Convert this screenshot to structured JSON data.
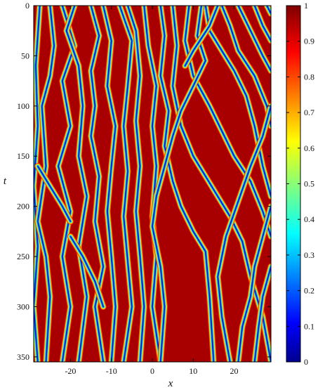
{
  "chart_data": {
    "type": "heatmap",
    "title": "",
    "xlabel": "x",
    "ylabel": "t",
    "xlim": [
      -29,
      29
    ],
    "ylim": [
      0,
      355
    ],
    "y_inverted": true,
    "x_ticks": [
      -20,
      -10,
      0,
      10,
      20
    ],
    "x_tick_labels": [
      "-20",
      "-10",
      "0",
      "10",
      "20"
    ],
    "y_ticks": [
      0,
      50,
      100,
      150,
      200,
      250,
      300,
      350
    ],
    "y_tick_labels": [
      "0",
      "50",
      "100",
      "150",
      "200",
      "250",
      "300",
      "350"
    ],
    "colorbar": {
      "range": [
        0,
        1
      ],
      "ticks": [
        0,
        0.1,
        0.2,
        0.3,
        0.4,
        0.5,
        0.6,
        0.7,
        0.8,
        0.9,
        1
      ],
      "tick_labels": [
        "0",
        "0.1",
        "0.2",
        "0.3",
        "0.4",
        "0.5",
        "0.6",
        "0.7",
        "0.8",
        "0.9",
        "1"
      ],
      "colormap": "jet"
    },
    "background_value": 1,
    "valley_value": 0,
    "valleys": [
      [
        [
          -27.5,
          0
        ],
        [
          -28.5,
          60
        ],
        [
          -28,
          120
        ],
        [
          -29,
          180
        ],
        [
          -28,
          240
        ],
        [
          -29,
          300
        ],
        [
          -28,
          355
        ]
      ],
      [
        [
          -25,
          0
        ],
        [
          -24,
          40
        ],
        [
          -25,
          70
        ],
        [
          -27,
          100
        ],
        [
          -26,
          160
        ],
        [
          -28,
          215
        ],
        [
          -26,
          250
        ],
        [
          -25,
          290
        ],
        [
          -26,
          355
        ]
      ],
      [
        [
          -22,
          0
        ],
        [
          -19,
          40
        ],
        [
          -22,
          75
        ],
        [
          -20,
          120
        ],
        [
          -23,
          160
        ],
        [
          -20,
          205
        ],
        [
          -22,
          250
        ],
        [
          -20,
          300
        ],
        [
          -22,
          355
        ]
      ],
      [
        [
          -19,
          0
        ],
        [
          -21,
          25
        ],
        [
          -18,
          60
        ],
        [
          -17,
          100
        ],
        [
          -18,
          150
        ],
        [
          -16,
          190
        ],
        [
          -18,
          240
        ],
        [
          -16,
          290
        ],
        [
          -18,
          355
        ]
      ],
      [
        [
          -15,
          0
        ],
        [
          -13,
          30
        ],
        [
          -15,
          65
        ],
        [
          -14,
          100
        ],
        [
          -15,
          130
        ],
        [
          -13,
          170
        ],
        [
          -14,
          215
        ],
        [
          -12,
          260
        ],
        [
          -14,
          300
        ],
        [
          -12,
          355
        ]
      ],
      [
        [
          -12,
          0
        ],
        [
          -10,
          35
        ],
        [
          -11,
          80
        ],
        [
          -9,
          120
        ],
        [
          -10,
          160
        ],
        [
          -11,
          205
        ],
        [
          -10,
          250
        ],
        [
          -9,
          300
        ],
        [
          -10,
          355
        ]
      ],
      [
        [
          -8,
          0
        ],
        [
          -5,
          35
        ],
        [
          -6,
          80
        ],
        [
          -7,
          120
        ],
        [
          -6,
          165
        ],
        [
          -7,
          210
        ],
        [
          -6,
          255
        ],
        [
          -5,
          300
        ],
        [
          -7,
          355
        ]
      ],
      [
        [
          -6,
          0
        ],
        [
          -4,
          25
        ],
        [
          -3,
          70
        ],
        [
          -4,
          115
        ],
        [
          -3,
          160
        ],
        [
          -4,
          205
        ],
        [
          -3,
          250
        ],
        [
          -2,
          300
        ],
        [
          -3,
          355
        ]
      ],
      [
        [
          -2,
          0
        ],
        [
          -1,
          40
        ],
        [
          1,
          80
        ],
        [
          0,
          120
        ],
        [
          1,
          160
        ],
        [
          0,
          210
        ],
        [
          1,
          250
        ],
        [
          0,
          300
        ],
        [
          2,
          355
        ]
      ],
      [
        [
          2,
          0
        ],
        [
          3,
          30
        ],
        [
          2,
          70
        ],
        [
          4,
          105
        ],
        [
          3,
          140
        ],
        [
          5,
          175
        ],
        [
          7,
          200
        ],
        [
          10,
          225
        ],
        [
          13,
          245
        ],
        [
          14,
          290
        ],
        [
          15,
          355
        ]
      ],
      [
        [
          5,
          0
        ],
        [
          6,
          40
        ],
        [
          5,
          80
        ],
        [
          7,
          120
        ],
        [
          10,
          150
        ],
        [
          13,
          170
        ],
        [
          16,
          190
        ],
        [
          19,
          210
        ],
        [
          22,
          235
        ],
        [
          24,
          270
        ],
        [
          27,
          310
        ],
        [
          29,
          355
        ]
      ],
      [
        [
          9,
          0
        ],
        [
          8,
          35
        ],
        [
          10,
          70
        ],
        [
          14,
          100
        ],
        [
          17,
          125
        ],
        [
          20,
          150
        ],
        [
          24,
          175
        ],
        [
          27,
          205
        ],
        [
          29,
          230
        ]
      ],
      [
        [
          13,
          0
        ],
        [
          14,
          25
        ],
        [
          17,
          45
        ],
        [
          20,
          65
        ],
        [
          23,
          90
        ],
        [
          25,
          120
        ],
        [
          27,
          160
        ],
        [
          29,
          190
        ]
      ],
      [
        [
          17,
          0
        ],
        [
          19,
          20
        ],
        [
          21,
          45
        ],
        [
          25,
          70
        ],
        [
          28,
          100
        ],
        [
          29,
          120
        ]
      ],
      [
        [
          21,
          0
        ],
        [
          24,
          25
        ],
        [
          27,
          50
        ],
        [
          29,
          65
        ]
      ],
      [
        [
          25,
          0
        ],
        [
          27,
          20
        ],
        [
          29,
          35
        ]
      ],
      [
        [
          28,
          0
        ],
        [
          29,
          8
        ]
      ],
      [
        [
          12,
          0
        ],
        [
          11,
          30
        ],
        [
          13,
          55
        ],
        [
          10,
          80
        ],
        [
          7,
          105
        ],
        [
          5,
          130
        ],
        [
          3,
          160
        ],
        [
          1,
          190
        ],
        [
          0,
          220
        ],
        [
          2,
          260
        ],
        [
          3,
          300
        ],
        [
          2,
          355
        ]
      ],
      [
        [
          16,
          0
        ],
        [
          14,
          20
        ],
        [
          10,
          45
        ],
        [
          8,
          60
        ]
      ],
      [
        [
          29,
          100
        ],
        [
          27,
          130
        ],
        [
          24,
          160
        ],
        [
          21,
          195
        ],
        [
          18,
          230
        ],
        [
          16,
          270
        ],
        [
          17,
          310
        ],
        [
          19,
          355
        ]
      ],
      [
        [
          29,
          200
        ],
        [
          27,
          230
        ],
        [
          25,
          260
        ],
        [
          24,
          290
        ],
        [
          22,
          320
        ],
        [
          21,
          355
        ]
      ],
      [
        [
          29,
          260
        ],
        [
          27,
          290
        ],
        [
          26,
          320
        ],
        [
          25,
          355
        ]
      ],
      [
        [
          -20,
          230
        ],
        [
          -17,
          250
        ],
        [
          -14,
          275
        ],
        [
          -12,
          300
        ]
      ],
      [
        [
          -28,
          160
        ],
        [
          -25,
          180
        ],
        [
          -22,
          200
        ],
        [
          -20,
          215
        ]
      ]
    ]
  }
}
